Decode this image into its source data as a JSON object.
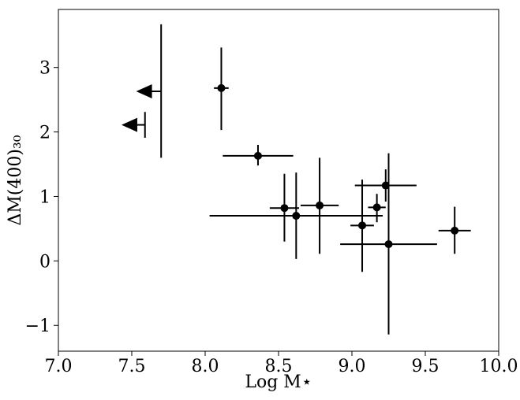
{
  "chart_data": {
    "type": "scatter",
    "xlabel": "Log M⋆",
    "ylabel": "ΔM(400)₃₀",
    "xlim": [
      7.0,
      10.0
    ],
    "ylim": [
      -1.4,
      3.9
    ],
    "xticks": [
      7.0,
      7.5,
      8.0,
      8.5,
      9.0,
      9.5,
      10.0
    ],
    "xtick_labels": [
      "7.0",
      "7.5",
      "8.0",
      "8.5",
      "9.0",
      "9.5",
      "10.0"
    ],
    "yticks": [
      -1,
      0,
      1,
      2,
      3
    ],
    "ytick_labels": [
      "−1",
      "0",
      "1",
      "2",
      "3"
    ],
    "grid": false,
    "marker_color": "#000000",
    "points": [
      {
        "x": 8.11,
        "y": 2.68,
        "xerr": [
          0.05,
          0.05
        ],
        "yerr": [
          0.65,
          0.63
        ]
      },
      {
        "x": 8.36,
        "y": 1.63,
        "xerr": [
          0.24,
          0.24
        ],
        "yerr": [
          0.15,
          0.17
        ]
      },
      {
        "x": 8.54,
        "y": 0.82,
        "xerr": [
          0.1,
          0.1
        ],
        "yerr": [
          0.52,
          0.53
        ]
      },
      {
        "x": 8.62,
        "y": 0.7,
        "xerr": [
          0.59,
          0.59
        ],
        "yerr": [
          0.67,
          0.67
        ]
      },
      {
        "x": 8.78,
        "y": 0.86,
        "xerr": [
          0.13,
          0.13
        ],
        "yerr": [
          0.75,
          0.74
        ]
      },
      {
        "x": 9.07,
        "y": 0.55,
        "xerr": [
          0.08,
          0.08
        ],
        "yerr": [
          0.72,
          0.71
        ]
      },
      {
        "x": 9.17,
        "y": 0.83,
        "xerr": [
          0.06,
          0.06
        ],
        "yerr": [
          0.23,
          0.21
        ]
      },
      {
        "x": 9.23,
        "y": 1.17,
        "xerr": [
          0.21,
          0.21
        ],
        "yerr": [
          0.25,
          0.25
        ]
      },
      {
        "x": 9.25,
        "y": 0.26,
        "xerr": [
          0.33,
          0.33
        ],
        "yerr": [
          1.4,
          1.41
        ]
      },
      {
        "x": 9.7,
        "y": 0.47,
        "xerr": [
          0.11,
          0.11
        ],
        "yerr": [
          0.36,
          0.37
        ]
      }
    ],
    "upper_limits": [
      {
        "x": 7.7,
        "y": 2.63,
        "y_low": 1.6,
        "y_high": 3.67,
        "arrow_to_x": 7.53
      },
      {
        "x": 7.59,
        "y": 2.11,
        "y_low": 1.91,
        "y_high": 2.31,
        "arrow_to_x": 7.43
      }
    ]
  }
}
